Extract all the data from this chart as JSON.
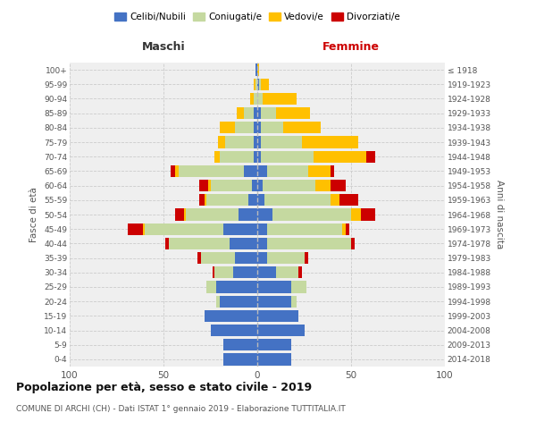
{
  "age_groups": [
    "0-4",
    "5-9",
    "10-14",
    "15-19",
    "20-24",
    "25-29",
    "30-34",
    "35-39",
    "40-44",
    "45-49",
    "50-54",
    "55-59",
    "60-64",
    "65-69",
    "70-74",
    "75-79",
    "80-84",
    "85-89",
    "90-94",
    "95-99",
    "100+"
  ],
  "birth_years": [
    "2014-2018",
    "2009-2013",
    "2004-2008",
    "1999-2003",
    "1994-1998",
    "1989-1993",
    "1984-1988",
    "1979-1983",
    "1974-1978",
    "1969-1973",
    "1964-1968",
    "1959-1963",
    "1954-1958",
    "1949-1953",
    "1944-1948",
    "1939-1943",
    "1934-1938",
    "1929-1933",
    "1924-1928",
    "1919-1923",
    "≤ 1918"
  ],
  "maschi": {
    "celibi": [
      18,
      18,
      25,
      28,
      20,
      22,
      13,
      12,
      15,
      18,
      10,
      5,
      3,
      7,
      2,
      2,
      2,
      2,
      0,
      0,
      1
    ],
    "coniugati": [
      0,
      0,
      0,
      0,
      2,
      5,
      10,
      18,
      32,
      42,
      28,
      22,
      22,
      35,
      18,
      15,
      10,
      5,
      2,
      1,
      0
    ],
    "vedovi": [
      0,
      0,
      0,
      0,
      0,
      0,
      0,
      0,
      0,
      1,
      1,
      1,
      1,
      2,
      3,
      4,
      8,
      4,
      2,
      1,
      0
    ],
    "divorziati": [
      0,
      0,
      0,
      0,
      0,
      0,
      1,
      2,
      2,
      8,
      5,
      3,
      5,
      2,
      0,
      0,
      0,
      0,
      0,
      0,
      0
    ]
  },
  "femmine": {
    "nubili": [
      18,
      18,
      25,
      22,
      18,
      18,
      10,
      5,
      5,
      5,
      8,
      4,
      3,
      5,
      2,
      2,
      2,
      2,
      0,
      1,
      0
    ],
    "coniugate": [
      0,
      0,
      0,
      0,
      3,
      8,
      12,
      20,
      45,
      40,
      42,
      35,
      28,
      22,
      28,
      22,
      12,
      8,
      3,
      1,
      0
    ],
    "vedove": [
      0,
      0,
      0,
      0,
      0,
      0,
      0,
      0,
      0,
      2,
      5,
      5,
      8,
      12,
      28,
      30,
      20,
      18,
      18,
      4,
      1
    ],
    "divorziate": [
      0,
      0,
      0,
      0,
      0,
      0,
      2,
      2,
      2,
      2,
      8,
      10,
      8,
      2,
      5,
      0,
      0,
      0,
      0,
      0,
      0
    ]
  },
  "colors": {
    "celibi_nubili": "#4472c4",
    "coniugati": "#c5d9a0",
    "vedovi": "#ffc000",
    "divorziati": "#cc0000"
  },
  "title": "Popolazione per età, sesso e stato civile - 2019",
  "subtitle": "COMUNE DI ARCHI (CH) - Dati ISTAT 1° gennaio 2019 - Elaborazione TUTTITALIA.IT",
  "xlabel_maschi": "Maschi",
  "xlabel_femmine": "Femmine",
  "ylabel_left": "Fasce di età",
  "ylabel_right": "Anni di nascita",
  "xlim": 100,
  "legend_labels": [
    "Celibi/Nubili",
    "Coniugati/e",
    "Vedovi/e",
    "Divorziati/e"
  ],
  "bg_color": "#ffffff",
  "plot_bg_color": "#efefef"
}
